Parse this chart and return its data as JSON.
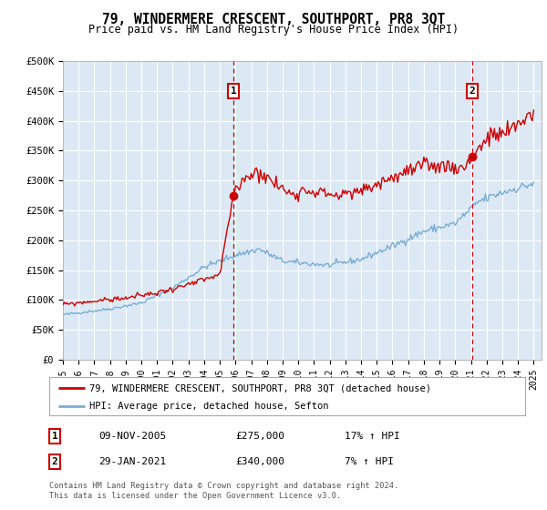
{
  "title": "79, WINDERMERE CRESCENT, SOUTHPORT, PR8 3QT",
  "subtitle": "Price paid vs. HM Land Registry's House Price Index (HPI)",
  "legend_line1": "79, WINDERMERE CRESCENT, SOUTHPORT, PR8 3QT (detached house)",
  "legend_line2": "HPI: Average price, detached house, Sefton",
  "annotation1_label": "1",
  "annotation1_date": "09-NOV-2005",
  "annotation1_price": "£275,000",
  "annotation1_hpi": "17% ↑ HPI",
  "annotation2_label": "2",
  "annotation2_date": "29-JAN-2021",
  "annotation2_price": "£340,000",
  "annotation2_hpi": "7% ↑ HPI",
  "footer": "Contains HM Land Registry data © Crown copyright and database right 2024.\nThis data is licensed under the Open Government Licence v3.0.",
  "ylim": [
    0,
    500000
  ],
  "yticks": [
    0,
    50000,
    100000,
    150000,
    200000,
    250000,
    300000,
    350000,
    400000,
    450000,
    500000
  ],
  "ytick_labels": [
    "£0",
    "£50K",
    "£100K",
    "£150K",
    "£200K",
    "£250K",
    "£300K",
    "£350K",
    "£400K",
    "£450K",
    "£500K"
  ],
  "xlim_start": 1995.0,
  "xlim_end": 2025.5,
  "xticks": [
    1995,
    1996,
    1997,
    1998,
    1999,
    2000,
    2001,
    2002,
    2003,
    2004,
    2005,
    2006,
    2007,
    2008,
    2009,
    2010,
    2011,
    2012,
    2013,
    2014,
    2015,
    2016,
    2017,
    2018,
    2019,
    2020,
    2021,
    2022,
    2023,
    2024,
    2025
  ],
  "plot_bg_color": "#dce9f5",
  "grid_color": "#ffffff",
  "red_color": "#cc0000",
  "blue_color": "#7aadd4",
  "annotation_box_color": "#cc0000",
  "point1_x": 2005.86,
  "point1_y": 275000,
  "point2_x": 2021.08,
  "point2_y": 340000
}
